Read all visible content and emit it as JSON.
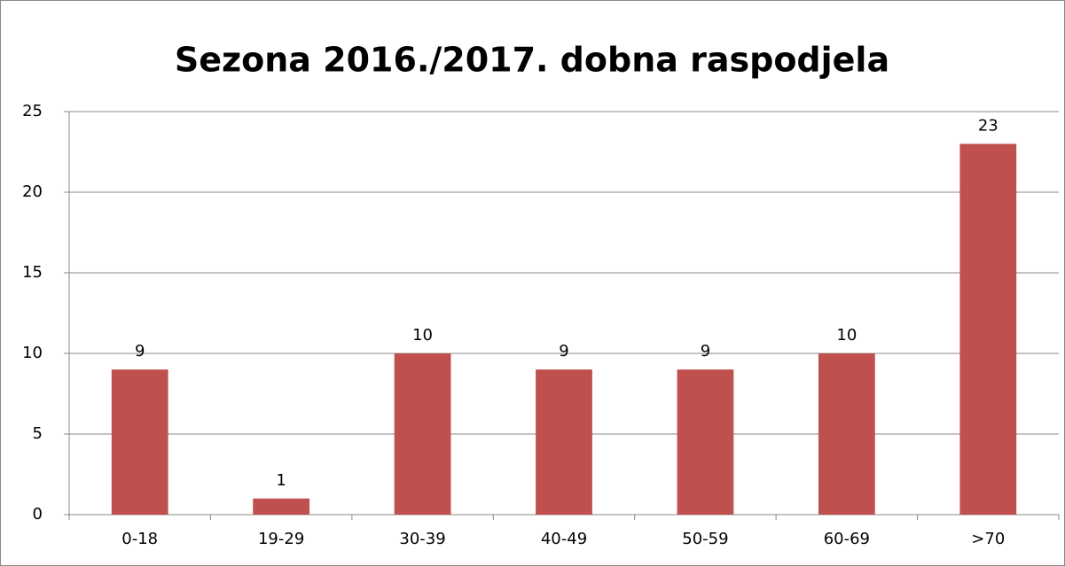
{
  "chart_data": {
    "type": "bar",
    "title": "Sezona 2016./2017. dobna raspodjela",
    "categories": [
      "0-18",
      "19-29",
      "30-39",
      "40-49",
      "50-59",
      "60-69",
      ">70"
    ],
    "values": [
      9,
      1,
      10,
      9,
      9,
      10,
      23
    ],
    "color": "#c0504d",
    "ylim": [
      0,
      25
    ],
    "yticks": [
      0,
      5,
      10,
      15,
      20,
      25
    ],
    "grid": true
  }
}
